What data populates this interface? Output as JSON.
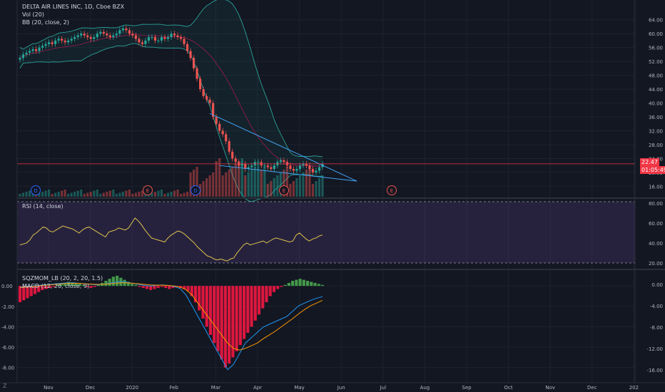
{
  "header": {
    "symbol_line": "DELTA AIR LINES INC, 1D, Cboe BZX",
    "vol_label": "Vol (20)",
    "bb_label": "BB (20, close, 2)",
    "rsi_label": "RSI (14, close)",
    "sqz_label": "SQZMOM_LB (20, 2, 20, 1.5)",
    "macd_label": "MACD (12, 26, close, 9)"
  },
  "price_badge": {
    "value": "22.47",
    "countdown": "01:05:49",
    "color": "#f23645"
  },
  "corner_letter": "Z",
  "colors": {
    "up": "#26a69a",
    "down": "#ef5350",
    "rsi": "#e0c34b",
    "rsi_band": "#7e57c2",
    "bb": "#2aa198",
    "trend": "#42a5f5",
    "macd": "#2196f3",
    "signal": "#ff9800",
    "sqz_pos": "#4caf50",
    "sqz_neg": "#ff1744"
  },
  "chart_data": [
    {
      "type": "candlestick",
      "title": "DELTA AIR LINES INC, 1D, Cboe BZX",
      "x_tick_labels": [
        "Nov",
        "Dec",
        "2020",
        "Feb",
        "Mar",
        "Apr",
        "May",
        "Jun",
        "Jul",
        "Aug",
        "Sep",
        "Oct",
        "Nov",
        "Dec",
        "202"
      ],
      "y_tick_labels": [
        "64.00",
        "60.00",
        "56.00",
        "52.00",
        "48.00",
        "44.00",
        "40.00",
        "36.00",
        "32.00",
        "28.00",
        "24.00",
        "20.00",
        "16.00"
      ],
      "ylim": [
        13,
        66
      ],
      "last_price": 22.47,
      "close_series_approx": [
        53,
        54,
        54.5,
        55,
        55.5,
        55,
        56,
        56.5,
        57,
        57.5,
        57,
        58,
        58.5,
        58,
        57.5,
        58,
        58.5,
        59,
        59.5,
        60,
        59.5,
        59,
        58.5,
        59,
        60,
        60.5,
        60,
        59.5,
        59,
        59.5,
        60,
        61,
        61.5,
        61,
        60,
        59.5,
        58.5,
        57.5,
        57,
        58,
        59,
        59,
        58,
        58,
        59,
        58.5,
        59,
        60,
        59.5,
        59,
        58.5,
        57,
        55,
        53,
        50,
        47,
        44,
        42,
        41,
        40,
        36,
        34,
        32,
        31,
        29,
        26,
        24,
        23,
        22,
        22.5,
        21,
        21.5,
        22,
        23,
        23,
        22,
        22,
        21.5,
        21,
        22,
        23,
        23.5,
        23,
        22,
        21,
        20.5,
        21,
        22,
        22.5,
        22,
        21,
        20,
        20.5,
        21.5,
        22.5
      ],
      "event_markers": [
        {
          "label": "D",
          "color": "#2962ff"
        },
        {
          "label": "E",
          "color": "#ef5350"
        },
        {
          "label": "D",
          "color": "#2962ff"
        },
        {
          "label": "E",
          "color": "#ef5350"
        },
        {
          "label": "E",
          "color": "#ef5350"
        }
      ]
    },
    {
      "type": "line",
      "title": "RSI (14, close)",
      "y_tick_labels": [
        "80.00",
        "60.00",
        "40.00",
        "20.00"
      ],
      "ylim": [
        15,
        82
      ],
      "bands": [
        20,
        80
      ],
      "values_approx": [
        38,
        39,
        40,
        43,
        48,
        50,
        53,
        56,
        55,
        52,
        51,
        53,
        55,
        57,
        56,
        55,
        54,
        52,
        50,
        53,
        55,
        56,
        54,
        52,
        50,
        48,
        46,
        51,
        52,
        53,
        55,
        54,
        53,
        55,
        60,
        65,
        62,
        58,
        53,
        49,
        45,
        44,
        43,
        42,
        41,
        45,
        48,
        50,
        52,
        51,
        49,
        46,
        43,
        40,
        36,
        33,
        30,
        27,
        26,
        24,
        23,
        24,
        23,
        22,
        24,
        25,
        30,
        34,
        38,
        40,
        38,
        39,
        40,
        41,
        42,
        40,
        42,
        44,
        45,
        44,
        43,
        42,
        41,
        42,
        48,
        50,
        47,
        44,
        42,
        44,
        45,
        47,
        48
      ]
    },
    {
      "type": "histogram+line",
      "title": "SQZMOM_LB (20, 2, 20, 1.5) / MACD (12, 26, close, 9)",
      "left_tick_labels": [
        "0.00",
        "-2.00",
        "-4.00",
        "-6.00",
        "-8.00"
      ],
      "right_tick_labels": [
        "0.00",
        "-4.00",
        "-8.00",
        "-12.00",
        "-16.00"
      ],
      "left_ylim": [
        -9,
        1.2
      ],
      "right_ylim": [
        -17.5,
        2
      ],
      "momentum_approx": [
        -1.6,
        -1.4,
        -1.2,
        -1,
        -0.8,
        -0.6,
        -0.4,
        -0.3,
        -0.2,
        -0.1,
        0.1,
        0.2,
        0.3,
        0.4,
        0.35,
        0.3,
        0.2,
        0.1,
        -0.1,
        -0.2,
        -0.1,
        0.1,
        0.3,
        0.5,
        0.7,
        0.9,
        1,
        0.8,
        0.6,
        0.4,
        0.2,
        0.1,
        -0.1,
        -0.2,
        -0.3,
        -0.4,
        -0.3,
        -0.2,
        -0.1,
        -0.2,
        -0.3,
        -0.2,
        -0.1,
        -0.2,
        -0.3,
        -0.5,
        -1,
        -1.6,
        -2.4,
        -3.2,
        -4,
        -4.8,
        -5.6,
        -6.4,
        -7.2,
        -8,
        -7.6,
        -7,
        -6.4,
        -5.8,
        -5.2,
        -4.6,
        -4,
        -3.4,
        -2.8,
        -2.2,
        -1.6,
        -1,
        -0.6,
        -0.3,
        -0.1,
        0.1,
        0.3,
        0.5,
        0.6,
        0.7,
        0.6,
        0.5,
        0.4,
        0.3,
        0.2,
        0.1
      ],
      "macd_approx": [
        -0.5,
        -0.4,
        -0.3,
        -0.2,
        -0.1,
        0,
        0.1,
        0.2,
        0.3,
        0.3,
        0.2,
        0.1,
        0,
        -0.1,
        0,
        0.2,
        0.4,
        0.5,
        0.4,
        0.2,
        0,
        -0.2,
        -0.3,
        -0.2,
        -0.1,
        -0.2,
        -0.4,
        -0.8,
        -2,
        -4,
        -6,
        -8,
        -10,
        -12,
        -14,
        -16,
        -15,
        -13,
        -11,
        -10,
        -9,
        -8,
        -7.5,
        -7,
        -6.5,
        -6,
        -5,
        -4,
        -3.5,
        -3,
        -2.6,
        -2.3
      ],
      "signal_approx": [
        -0.6,
        -0.5,
        -0.4,
        -0.3,
        -0.2,
        -0.1,
        0,
        0.1,
        0.2,
        0.2,
        0.2,
        0.1,
        0.05,
        0,
        0,
        0.1,
        0.2,
        0.3,
        0.3,
        0.2,
        0.1,
        0,
        -0.1,
        -0.15,
        -0.15,
        -0.2,
        -0.3,
        -0.5,
        -1,
        -2,
        -3.5,
        -5,
        -6.5,
        -8,
        -9.5,
        -11,
        -12,
        -12.3,
        -12,
        -11.5,
        -11,
        -10.2,
        -9.5,
        -8.8,
        -8,
        -7.2,
        -6.4,
        -5.5,
        -4.7,
        -4,
        -3.5,
        -3
      ]
    }
  ]
}
